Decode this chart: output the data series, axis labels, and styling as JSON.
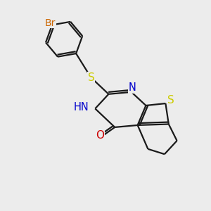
{
  "bg_color": "#ececec",
  "bond_color": "#1a1a1a",
  "br_color": "#cc6600",
  "S_color": "#cccc00",
  "N_color": "#0000cc",
  "O_color": "#cc0000",
  "line_width": 1.6,
  "font_size": 10.5,
  "fig_w": 3.0,
  "fig_h": 3.0,
  "dpi": 100,
  "xlim": [
    0,
    10
  ],
  "ylim": [
    0,
    10
  ]
}
